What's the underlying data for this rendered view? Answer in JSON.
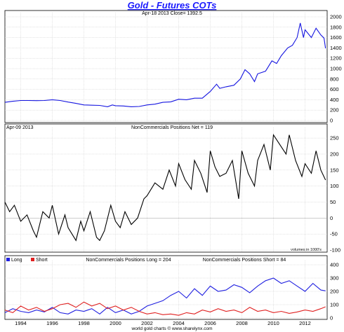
{
  "chart_data": [
    {
      "type": "line",
      "panel": "price",
      "title": "Gold - Futures COTs",
      "subtitle": "Apr-18 2013  Close= 1392.5",
      "y_ticks": [
        0,
        200,
        400,
        600,
        800,
        1000,
        1200,
        1400,
        1600,
        1800,
        2000
      ],
      "ylim": [
        0,
        2000
      ],
      "grid": true,
      "series": [
        {
          "color": "#1515e0",
          "points": [
            [
              1993.0,
              350
            ],
            [
              1993.5,
              370
            ],
            [
              1994.0,
              385
            ],
            [
              1994.5,
              385
            ],
            [
              1995.0,
              382
            ],
            [
              1995.5,
              385
            ],
            [
              1996.0,
              400
            ],
            [
              1996.5,
              385
            ],
            [
              1997.0,
              355
            ],
            [
              1997.5,
              330
            ],
            [
              1998.0,
              300
            ],
            [
              1998.5,
              295
            ],
            [
              1999.0,
              290
            ],
            [
              1999.5,
              265
            ],
            [
              1999.8,
              300
            ],
            [
              2000.0,
              285
            ],
            [
              2000.5,
              280
            ],
            [
              2001.0,
              265
            ],
            [
              2001.5,
              270
            ],
            [
              2002.0,
              300
            ],
            [
              2002.5,
              315
            ],
            [
              2003.0,
              350
            ],
            [
              2003.5,
              360
            ],
            [
              2004.0,
              410
            ],
            [
              2004.5,
              400
            ],
            [
              2005.0,
              430
            ],
            [
              2005.5,
              430
            ],
            [
              2006.0,
              560
            ],
            [
              2006.4,
              700
            ],
            [
              2006.6,
              620
            ],
            [
              2007.0,
              650
            ],
            [
              2007.5,
              680
            ],
            [
              2007.9,
              800
            ],
            [
              2008.2,
              980
            ],
            [
              2008.5,
              900
            ],
            [
              2008.8,
              750
            ],
            [
              2009.0,
              900
            ],
            [
              2009.5,
              950
            ],
            [
              2009.9,
              1150
            ],
            [
              2010.2,
              1100
            ],
            [
              2010.5,
              1250
            ],
            [
              2010.9,
              1400
            ],
            [
              2011.2,
              1450
            ],
            [
              2011.5,
              1600
            ],
            [
              2011.7,
              1880
            ],
            [
              2011.9,
              1600
            ],
            [
              2012.0,
              1750
            ],
            [
              2012.4,
              1600
            ],
            [
              2012.7,
              1780
            ],
            [
              2013.0,
              1650
            ],
            [
              2013.2,
              1590
            ],
            [
              2013.3,
              1392
            ]
          ]
        }
      ]
    },
    {
      "type": "line",
      "panel": "net",
      "subtitle": "NonCommercials Positions Net = 119",
      "date_label": "Apr-09 2013",
      "note": "volumes in 1000's",
      "y_ticks": [
        -100,
        -50,
        0,
        50,
        100,
        150,
        200,
        250
      ],
      "ylim": [
        -100,
        270
      ],
      "grid": true,
      "series": [
        {
          "color": "#000000",
          "points": [
            [
              1993.0,
              50
            ],
            [
              1993.3,
              20
            ],
            [
              1993.6,
              40
            ],
            [
              1994.0,
              -10
            ],
            [
              1994.4,
              10
            ],
            [
              1994.8,
              -40
            ],
            [
              1995.0,
              -60
            ],
            [
              1995.4,
              20
            ],
            [
              1995.8,
              0
            ],
            [
              1996.0,
              40
            ],
            [
              1996.4,
              -50
            ],
            [
              1996.8,
              10
            ],
            [
              1997.0,
              -30
            ],
            [
              1997.5,
              -70
            ],
            [
              1997.8,
              -10
            ],
            [
              1998.0,
              -40
            ],
            [
              1998.4,
              20
            ],
            [
              1998.8,
              -60
            ],
            [
              1999.0,
              -70
            ],
            [
              1999.3,
              -40
            ],
            [
              1999.7,
              40
            ],
            [
              2000.0,
              -10
            ],
            [
              2000.3,
              -30
            ],
            [
              2000.6,
              20
            ],
            [
              2001.0,
              -20
            ],
            [
              2001.4,
              0
            ],
            [
              2001.8,
              60
            ],
            [
              2002.0,
              70
            ],
            [
              2002.5,
              110
            ],
            [
              2003.0,
              90
            ],
            [
              2003.4,
              150
            ],
            [
              2003.8,
              100
            ],
            [
              2004.0,
              170
            ],
            [
              2004.4,
              120
            ],
            [
              2004.8,
              90
            ],
            [
              2005.0,
              180
            ],
            [
              2005.4,
              140
            ],
            [
              2005.8,
              80
            ],
            [
              2006.0,
              210
            ],
            [
              2006.3,
              160
            ],
            [
              2006.6,
              130
            ],
            [
              2007.0,
              140
            ],
            [
              2007.4,
              180
            ],
            [
              2007.8,
              60
            ],
            [
              2008.0,
              210
            ],
            [
              2008.4,
              140
            ],
            [
              2008.8,
              100
            ],
            [
              2009.0,
              180
            ],
            [
              2009.4,
              230
            ],
            [
              2009.8,
              150
            ],
            [
              2010.0,
              260
            ],
            [
              2010.4,
              230
            ],
            [
              2010.8,
              200
            ],
            [
              2011.0,
              260
            ],
            [
              2011.4,
              180
            ],
            [
              2011.8,
              130
            ],
            [
              2012.0,
              170
            ],
            [
              2012.4,
              140
            ],
            [
              2012.7,
              210
            ],
            [
              2013.0,
              150
            ],
            [
              2013.3,
              119
            ]
          ]
        }
      ]
    },
    {
      "type": "line",
      "panel": "long_short",
      "legend": [
        "Long",
        "Short"
      ],
      "subtitle_long": "NonCommercials Positions Long = 204",
      "subtitle_short": "NonCommercials Positions Short = 84",
      "y_ticks": [
        0,
        100,
        200,
        300,
        400
      ],
      "ylim": [
        0,
        400
      ],
      "grid": true,
      "series": [
        {
          "name": "Long",
          "color": "#2020e0",
          "points": [
            [
              1993.0,
              40
            ],
            [
              1993.5,
              70
            ],
            [
              1994.0,
              50
            ],
            [
              1994.5,
              40
            ],
            [
              1995.0,
              60
            ],
            [
              1995.5,
              45
            ],
            [
              1996.0,
              80
            ],
            [
              1996.5,
              40
            ],
            [
              1997.0,
              30
            ],
            [
              1997.5,
              60
            ],
            [
              1998.0,
              50
            ],
            [
              1998.5,
              70
            ],
            [
              1999.0,
              30
            ],
            [
              1999.5,
              80
            ],
            [
              2000.0,
              40
            ],
            [
              2000.5,
              60
            ],
            [
              2001.0,
              30
            ],
            [
              2001.5,
              50
            ],
            [
              2002.0,
              90
            ],
            [
              2002.5,
              110
            ],
            [
              2003.0,
              130
            ],
            [
              2003.5,
              170
            ],
            [
              2004.0,
              200
            ],
            [
              2004.5,
              150
            ],
            [
              2005.0,
              220
            ],
            [
              2005.5,
              170
            ],
            [
              2006.0,
              240
            ],
            [
              2006.5,
              200
            ],
            [
              2007.0,
              210
            ],
            [
              2007.5,
              250
            ],
            [
              2008.0,
              230
            ],
            [
              2008.5,
              190
            ],
            [
              2009.0,
              240
            ],
            [
              2009.5,
              280
            ],
            [
              2010.0,
              300
            ],
            [
              2010.5,
              260
            ],
            [
              2011.0,
              280
            ],
            [
              2011.5,
              240
            ],
            [
              2012.0,
              200
            ],
            [
              2012.5,
              260
            ],
            [
              2013.0,
              210
            ],
            [
              2013.3,
              204
            ]
          ]
        },
        {
          "name": "Short",
          "color": "#e02020",
          "points": [
            [
              1993.0,
              60
            ],
            [
              1993.5,
              40
            ],
            [
              1994.0,
              90
            ],
            [
              1994.5,
              60
            ],
            [
              1995.0,
              80
            ],
            [
              1995.5,
              50
            ],
            [
              1996.0,
              70
            ],
            [
              1996.5,
              100
            ],
            [
              1997.0,
              110
            ],
            [
              1997.5,
              80
            ],
            [
              1998.0,
              120
            ],
            [
              1998.5,
              90
            ],
            [
              1999.0,
              110
            ],
            [
              1999.5,
              70
            ],
            [
              2000.0,
              90
            ],
            [
              2000.5,
              60
            ],
            [
              2001.0,
              80
            ],
            [
              2001.5,
              50
            ],
            [
              2002.0,
              30
            ],
            [
              2002.5,
              40
            ],
            [
              2003.0,
              25
            ],
            [
              2003.5,
              30
            ],
            [
              2004.0,
              20
            ],
            [
              2004.5,
              40
            ],
            [
              2005.0,
              30
            ],
            [
              2005.5,
              60
            ],
            [
              2006.0,
              45
            ],
            [
              2006.5,
              70
            ],
            [
              2007.0,
              50
            ],
            [
              2007.5,
              60
            ],
            [
              2008.0,
              40
            ],
            [
              2008.5,
              80
            ],
            [
              2009.0,
              50
            ],
            [
              2009.5,
              60
            ],
            [
              2010.0,
              40
            ],
            [
              2010.5,
              50
            ],
            [
              2011.0,
              35
            ],
            [
              2011.5,
              45
            ],
            [
              2012.0,
              60
            ],
            [
              2012.5,
              50
            ],
            [
              2013.0,
              70
            ],
            [
              2013.3,
              84
            ]
          ]
        }
      ]
    }
  ],
  "x_axis": {
    "xlim": [
      1993.0,
      2013.4
    ],
    "tick_labels": [
      "1994",
      "1996",
      "1998",
      "2000",
      "2002",
      "2004",
      "2006",
      "2008",
      "2010",
      "2012"
    ],
    "tick_values": [
      1994,
      1996,
      1998,
      2000,
      2002,
      2004,
      2006,
      2008,
      2010,
      2012
    ]
  },
  "footer": "world gold charts  ©  www.sharelynx.com"
}
